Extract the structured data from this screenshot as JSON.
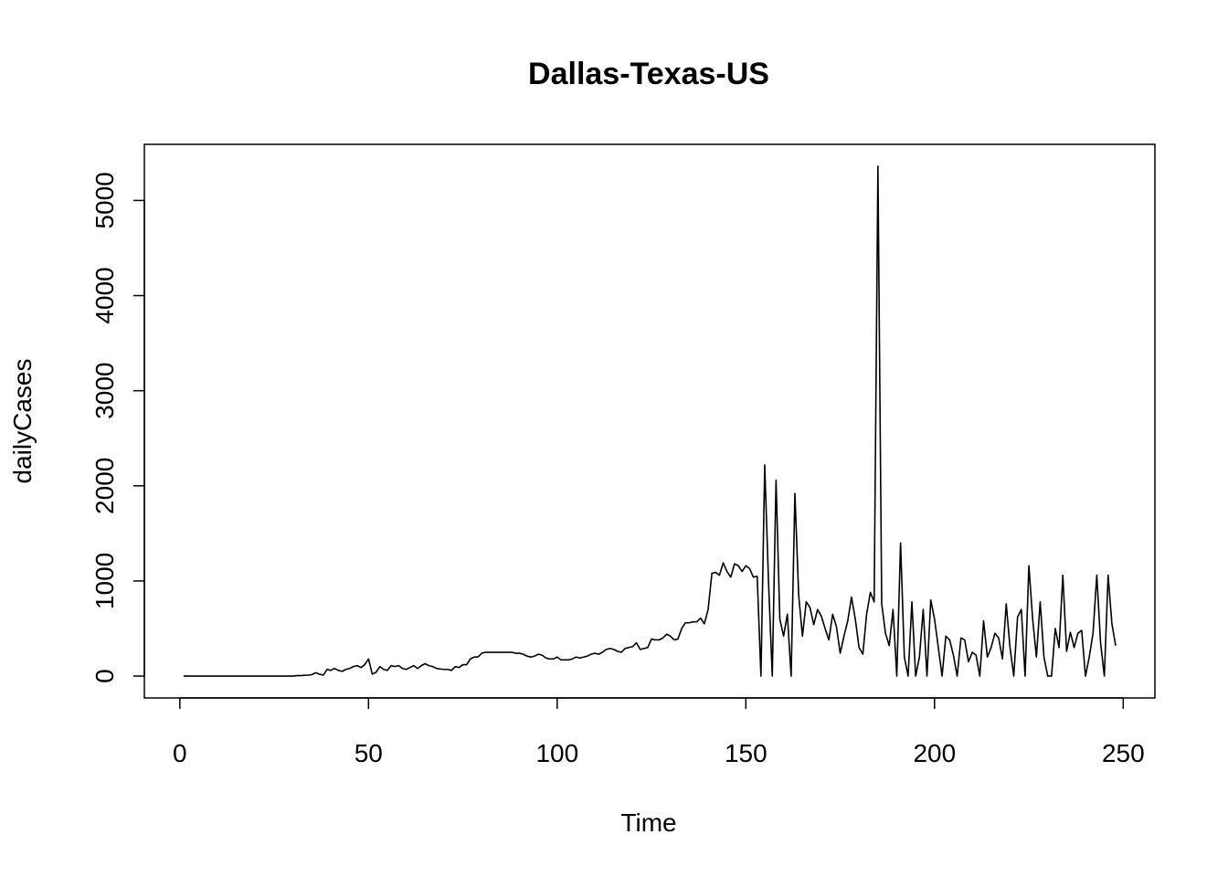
{
  "chart_data": {
    "type": "line",
    "title": "Dallas-Texas-US",
    "xlabel": "Time",
    "ylabel": "dailyCases",
    "xlim": [
      -9.4,
      258.4
    ],
    "ylim": [
      -230,
      5590
    ],
    "x_ticks": [
      0,
      50,
      100,
      150,
      200,
      250
    ],
    "y_ticks": [
      0,
      1000,
      2000,
      3000,
      4000,
      5000
    ],
    "grid": false,
    "series": [
      {
        "line_color": "#000000",
        "x": [
          1,
          2,
          3,
          4,
          5,
          6,
          7,
          8,
          9,
          10,
          11,
          12,
          13,
          14,
          15,
          16,
          17,
          18,
          19,
          20,
          21,
          22,
          23,
          24,
          25,
          26,
          27,
          28,
          29,
          30,
          31,
          32,
          33,
          34,
          35,
          36,
          37,
          38,
          39,
          40,
          41,
          42,
          43,
          44,
          45,
          46,
          47,
          48,
          49,
          50,
          51,
          52,
          53,
          54,
          55,
          56,
          57,
          58,
          59,
          60,
          61,
          62,
          63,
          64,
          65,
          66,
          67,
          68,
          69,
          70,
          71,
          72,
          73,
          74,
          75,
          76,
          77,
          78,
          79,
          80,
          81,
          82,
          83,
          84,
          85,
          86,
          87,
          88,
          89,
          90,
          91,
          92,
          93,
          94,
          95,
          96,
          97,
          98,
          99,
          100,
          101,
          102,
          103,
          104,
          105,
          106,
          107,
          108,
          109,
          110,
          111,
          112,
          113,
          114,
          115,
          116,
          117,
          118,
          119,
          120,
          121,
          122,
          123,
          124,
          125,
          126,
          127,
          128,
          129,
          130,
          131,
          132,
          133,
          134,
          135,
          136,
          137,
          138,
          139,
          140,
          141,
          142,
          143,
          144,
          145,
          146,
          147,
          148,
          149,
          150,
          151,
          152,
          153,
          154,
          155,
          156,
          157,
          158,
          159,
          160,
          161,
          162,
          163,
          164,
          165,
          166,
          167,
          168,
          169,
          170,
          171,
          172,
          173,
          174,
          175,
          176,
          177,
          178,
          179,
          180,
          181,
          182,
          183,
          184,
          185,
          186,
          187,
          188,
          189,
          190,
          191,
          192,
          193,
          194,
          195,
          196,
          197,
          198,
          199,
          200,
          201,
          202,
          203,
          204,
          205,
          206,
          207,
          208,
          209,
          210,
          211,
          212,
          213,
          214,
          215,
          216,
          217,
          218,
          219,
          220,
          221,
          222,
          223,
          224,
          225,
          226,
          227,
          228,
          229,
          230,
          231,
          232,
          233,
          234,
          235,
          236,
          237,
          238,
          239,
          240,
          241,
          242,
          243,
          244,
          245,
          246,
          247,
          248
        ],
        "y": [
          0,
          0,
          0,
          0,
          0,
          0,
          0,
          0,
          0,
          0,
          0,
          0,
          0,
          0,
          0,
          0,
          0,
          0,
          0,
          0,
          0,
          0,
          0,
          0,
          0,
          0,
          0,
          0,
          0,
          0,
          5,
          5,
          8,
          10,
          15,
          35,
          20,
          10,
          70,
          60,
          80,
          60,
          50,
          70,
          80,
          100,
          110,
          90,
          120,
          180,
          20,
          40,
          100,
          70,
          60,
          110,
          100,
          110,
          80,
          70,
          90,
          110,
          80,
          110,
          130,
          110,
          100,
          80,
          75,
          70,
          70,
          60,
          100,
          90,
          120,
          120,
          180,
          200,
          200,
          240,
          250,
          250,
          250,
          250,
          250,
          250,
          250,
          250,
          240,
          240,
          230,
          210,
          200,
          210,
          230,
          220,
          190,
          180,
          180,
          200,
          170,
          170,
          170,
          180,
          200,
          190,
          200,
          210,
          230,
          240,
          230,
          250,
          280,
          290,
          280,
          260,
          250,
          290,
          300,
          310,
          350,
          280,
          290,
          300,
          390,
          380,
          380,
          400,
          440,
          420,
          380,
          390,
          500,
          560,
          560,
          570,
          570,
          610,
          550,
          700,
          1080,
          1090,
          1060,
          1190,
          1100,
          1040,
          1180,
          1160,
          1100,
          1160,
          1130,
          1040,
          1050,
          0,
          2220,
          1000,
          0,
          2060,
          600,
          420,
          650,
          0,
          1920,
          850,
          420,
          780,
          720,
          540,
          700,
          630,
          500,
          380,
          650,
          520,
          240,
          420,
          580,
          830,
          600,
          300,
          230,
          650,
          880,
          780,
          5360,
          760,
          450,
          320,
          700,
          0,
          1400,
          200,
          0,
          780,
          0,
          200,
          700,
          0,
          800,
          600,
          300,
          0,
          420,
          380,
          220,
          0,
          400,
          380,
          150,
          250,
          220,
          0,
          580,
          200,
          300,
          450,
          400,
          180,
          760,
          300,
          0,
          620,
          700,
          0,
          1160,
          600,
          200,
          780,
          200,
          0,
          0,
          500,
          300,
          1060,
          260,
          460,
          300,
          450,
          480,
          0,
          200,
          450,
          1060,
          350,
          0,
          1060,
          550,
          320
        ]
      }
    ]
  }
}
